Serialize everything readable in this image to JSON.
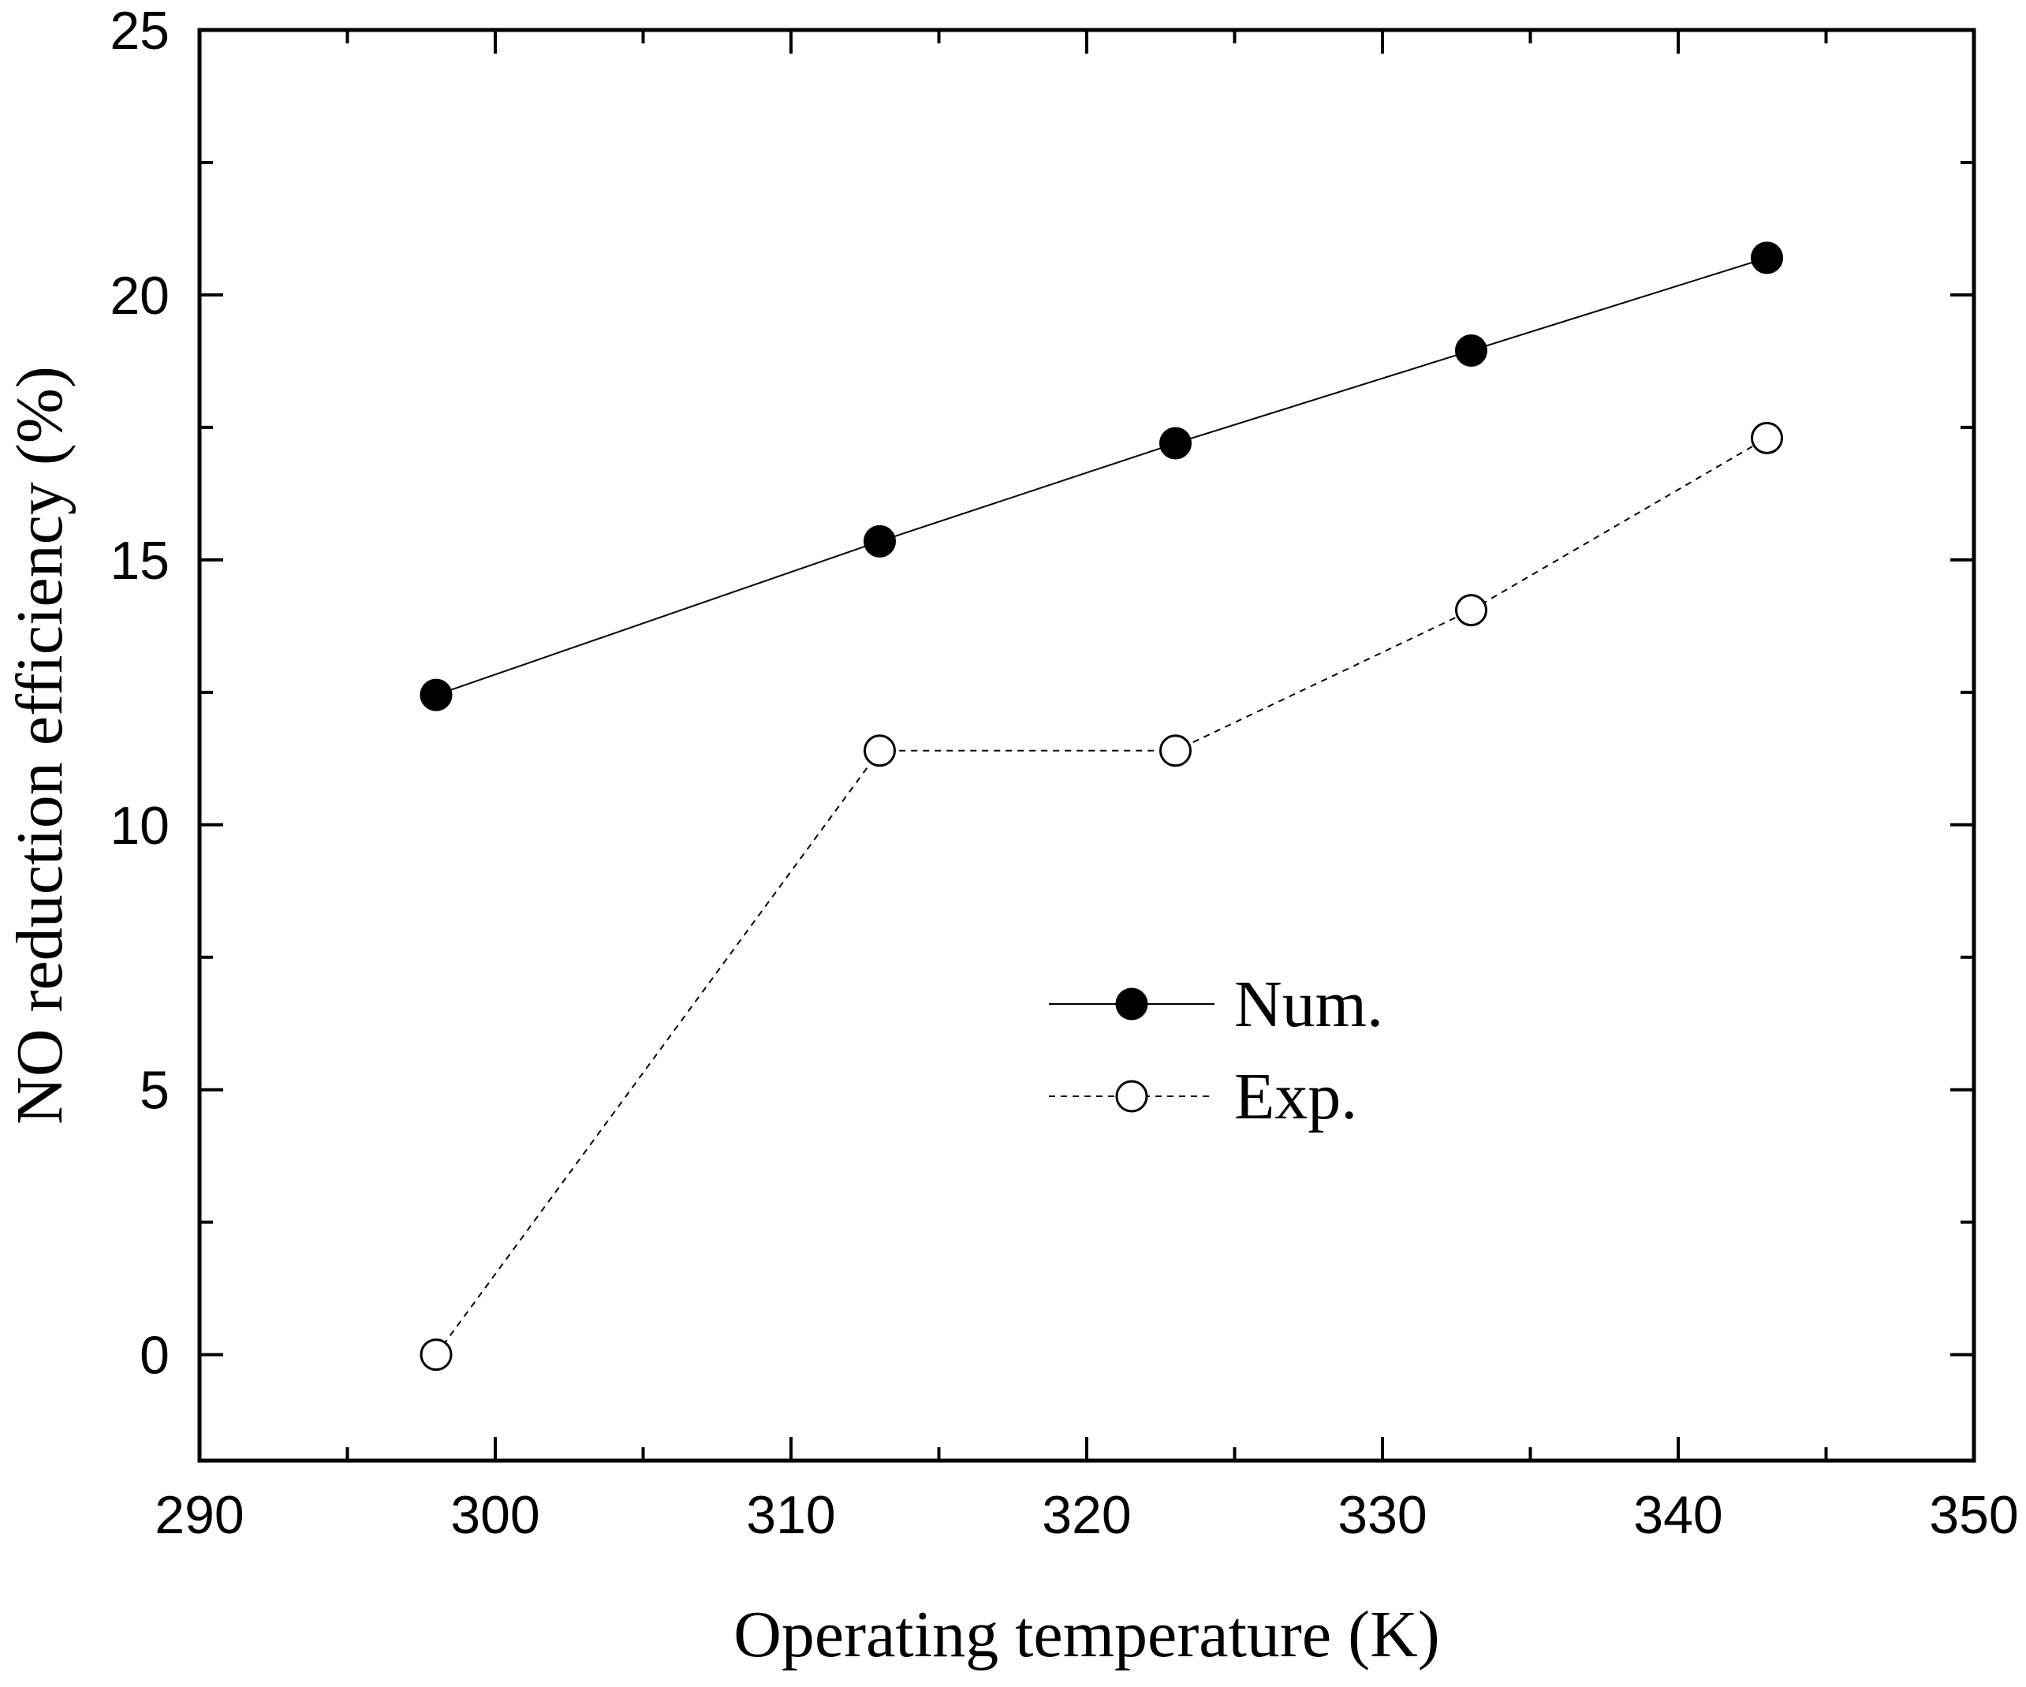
{
  "chart_data": {
    "type": "line",
    "title": "",
    "xlabel": "Operating temperature (K)",
    "ylabel": "NO reduction efficiency (%)",
    "xlim": [
      290,
      350
    ],
    "ylim": [
      -2,
      25
    ],
    "x_ticks": [
      290,
      300,
      310,
      320,
      330,
      340,
      350
    ],
    "y_ticks": [
      0,
      5,
      10,
      15,
      20,
      25
    ],
    "grid": false,
    "legend_position": "center",
    "series": [
      {
        "name": "Num.",
        "marker": "filled-circle",
        "line": "solid",
        "color": "#000000",
        "x": [
          298,
          313,
          323,
          333,
          343
        ],
        "y": [
          12.45,
          15.35,
          17.2,
          18.95,
          20.7
        ]
      },
      {
        "name": "Exp.",
        "marker": "open-circle",
        "line": "dashed",
        "color": "#000000",
        "x": [
          298,
          313,
          323,
          333,
          343
        ],
        "y": [
          0.0,
          11.4,
          11.4,
          14.05,
          17.3
        ]
      }
    ]
  }
}
